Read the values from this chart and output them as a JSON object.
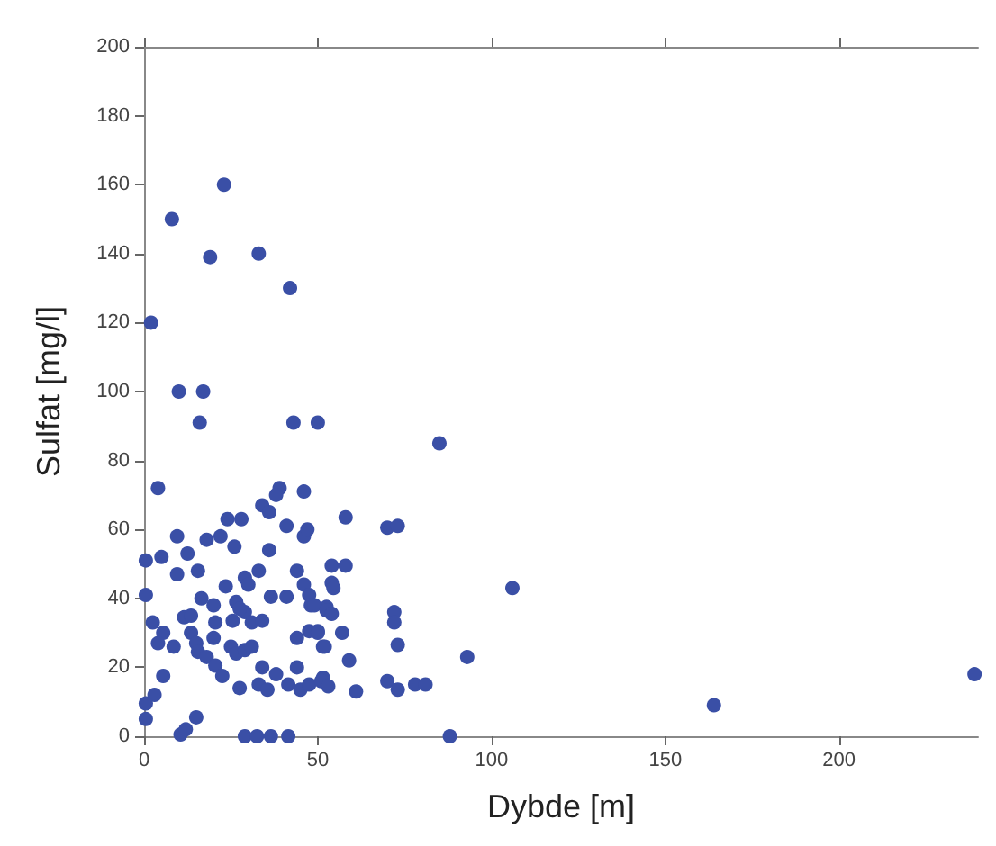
{
  "chart_data": {
    "type": "scatter",
    "xlabel": "Dybde [m]",
    "ylabel": "Sulfat [mg/l]",
    "xlim": [
      0,
      240
    ],
    "xticks": [
      0,
      50,
      100,
      150,
      200
    ],
    "ylim": [
      0,
      200
    ],
    "yticks": [
      0,
      20,
      40,
      60,
      80,
      100,
      120,
      140,
      160,
      180,
      200
    ],
    "marker": "circle",
    "series": [
      {
        "color": "#3a4fa6",
        "x": [
          23,
          8,
          19,
          33,
          42,
          2,
          10,
          17,
          16,
          43,
          50,
          85,
          4,
          106,
          93,
          88,
          164,
          239,
          39,
          38,
          46,
          34,
          36,
          24,
          28,
          9.5,
          0.5,
          5,
          12.5,
          18,
          22,
          26,
          36,
          41,
          46,
          47,
          9.5,
          15.5,
          29,
          30,
          33,
          23.5,
          44,
          46,
          0.5,
          16.5,
          20,
          26.5,
          36.5,
          41,
          47.5,
          48,
          52.5,
          11.5,
          13.5,
          2.5,
          20.5,
          25.5,
          29,
          27.5,
          31,
          34,
          5.5,
          4,
          8.5,
          13.5,
          15,
          20,
          25,
          26.5,
          29,
          31,
          44,
          47.5,
          50,
          51.5,
          15.5,
          18,
          20.5,
          22.5,
          34,
          38,
          44,
          5.5,
          27.5,
          33,
          35.5,
          41.5,
          45,
          47.5,
          51.5,
          3,
          0.5,
          0.5,
          15,
          10.5,
          12,
          29,
          32.5,
          36.5,
          41.5,
          58,
          70,
          73,
          54,
          58,
          54,
          54.5,
          49,
          52.5,
          54,
          72,
          72,
          50,
          57,
          52,
          73,
          59,
          51,
          53,
          61,
          70,
          73,
          78,
          81
        ],
        "values": [
          160,
          150,
          139,
          140,
          130,
          120,
          100,
          100,
          91,
          91,
          91,
          85,
          72,
          43,
          23,
          0,
          9,
          18,
          72,
          70,
          71,
          67,
          65,
          63,
          63,
          58,
          51,
          52,
          53,
          57,
          58,
          55,
          54,
          61,
          58,
          60,
          47,
          48,
          46,
          44,
          48,
          43.5,
          48,
          44,
          41,
          40,
          38,
          39,
          40.5,
          40.5,
          41,
          38,
          37.5,
          34.5,
          35,
          33,
          33,
          33.5,
          36,
          37,
          33,
          33.5,
          30,
          27,
          26,
          30,
          27,
          28.5,
          26,
          24,
          25,
          26,
          28.5,
          30.5,
          30.5,
          26,
          24.5,
          23,
          20.5,
          17.5,
          20,
          18,
          20,
          17.5,
          14,
          15,
          13.5,
          15,
          13.5,
          15,
          17,
          12,
          9.5,
          5,
          5.5,
          0.5,
          2,
          0,
          0,
          0,
          0,
          63.5,
          60.5,
          61,
          49.5,
          49.5,
          44.5,
          43,
          38,
          36.5,
          35.5,
          36,
          33,
          30,
          30,
          26,
          26.5,
          22,
          16,
          14.5,
          13,
          16,
          13.5,
          15,
          15
        ]
      }
    ]
  }
}
